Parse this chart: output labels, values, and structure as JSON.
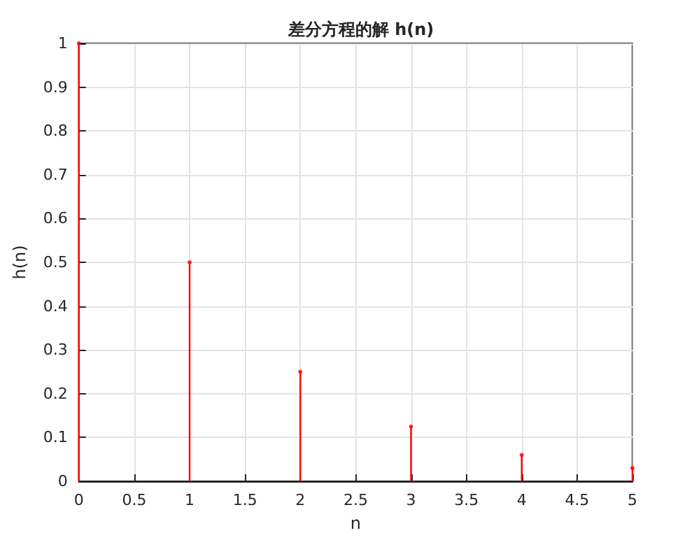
{
  "chart_data": {
    "type": "lollipop",
    "title": "差分方程的解 h(n)",
    "xlabel": "n",
    "ylabel": "h(n)",
    "x": [
      0,
      1,
      2,
      3,
      4,
      5
    ],
    "series": [
      {
        "color": "#ff0000",
        "values": [
          1,
          0.5,
          0.25,
          0.125,
          0.06,
          0.03
        ]
      }
    ],
    "xlim": [
      0,
      5
    ],
    "xticks": [
      0,
      0.5,
      1,
      1.5,
      2,
      2.5,
      3,
      3.5,
      4,
      4.5,
      5
    ],
    "ylim": [
      0,
      1
    ],
    "yticks": [
      0,
      0.1,
      0.2,
      0.3,
      0.4,
      0.5,
      0.6,
      0.7,
      0.8,
      0.9,
      1
    ],
    "grid": true,
    "marker": "circle"
  }
}
